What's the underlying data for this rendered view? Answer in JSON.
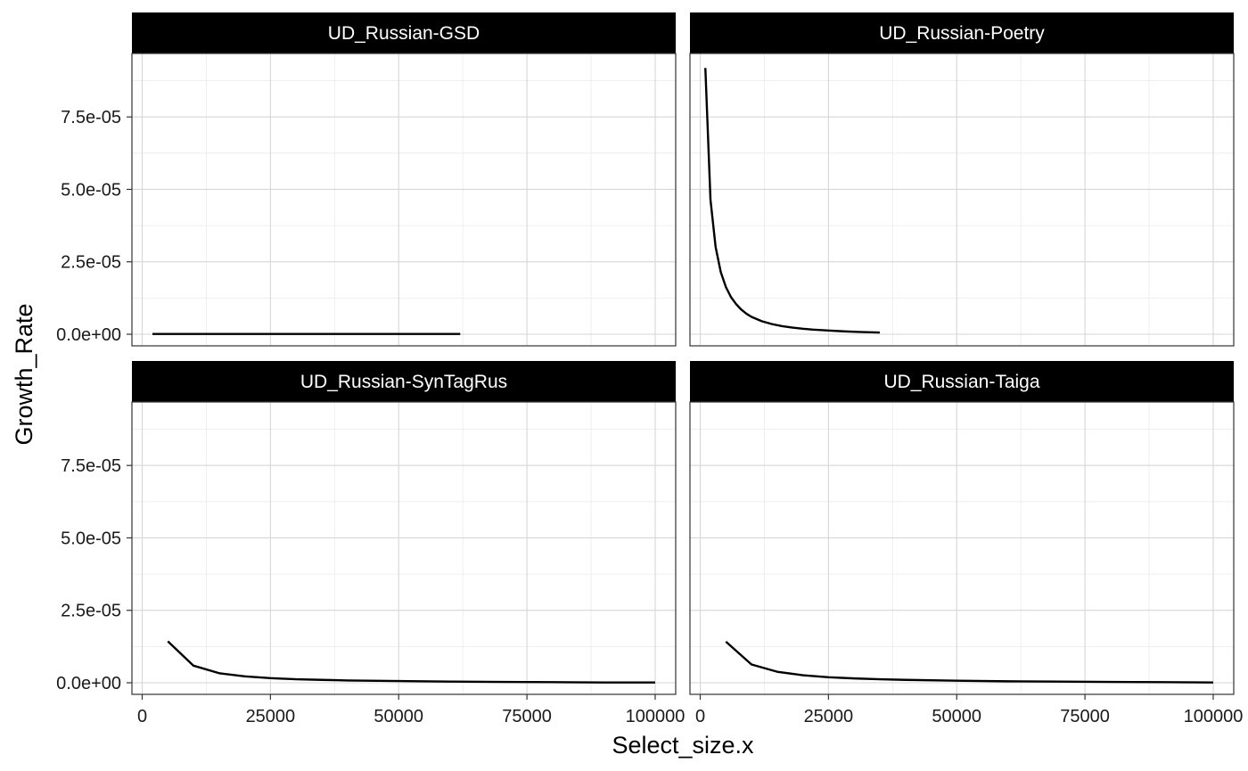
{
  "chart_data": {
    "type": "line",
    "xlabel": "Select_size.x",
    "ylabel": "Growth_Rate",
    "xlim": [
      -2000,
      104000
    ],
    "ylim": [
      -4e-06,
      9.69e-05
    ],
    "x_ticks": [
      0,
      25000,
      50000,
      75000,
      100000
    ],
    "x_tick_labels": [
      "0",
      "25000",
      "50000",
      "75000",
      "100000"
    ],
    "y_ticks": [
      0,
      2.5e-05,
      5e-05,
      7.5e-05
    ],
    "y_tick_labels": [
      "0.0e+00",
      "2.5e-05",
      "5.0e-05",
      "7.5e-05"
    ],
    "grid": true,
    "line_color": "#000000",
    "facets": [
      {
        "title": "UD_Russian-GSD",
        "x": [
          2000,
          10000,
          20000,
          30000,
          40000,
          50000,
          62000
        ],
        "y": [
          1e-07,
          1e-07,
          1e-07,
          1e-07,
          1e-07,
          1e-07,
          1e-07
        ]
      },
      {
        "title": "UD_Russian-Poetry",
        "x": [
          1000,
          2000,
          3000,
          4000,
          5000,
          6000,
          7000,
          8000,
          9000,
          10000,
          12000,
          14000,
          16000,
          18000,
          20000,
          22000,
          25000,
          28000,
          31000,
          35000
        ],
        "y": [
          9.19e-05,
          4.64e-05,
          3.01e-05,
          2.15e-05,
          1.63e-05,
          1.28e-05,
          1.04e-05,
          8.5e-06,
          7.1e-06,
          6e-06,
          4.5e-06,
          3.5e-06,
          2.8e-06,
          2.3e-06,
          1.9e-06,
          1.6e-06,
          1.3e-06,
          1e-06,
          8e-07,
          6e-07
        ]
      },
      {
        "title": "UD_Russian-SynTagRus",
        "x": [
          5000,
          10000,
          15000,
          20000,
          25000,
          30000,
          35000,
          40000,
          50000,
          60000,
          70000,
          80000,
          90000,
          100000
        ],
        "y": [
          1.43e-05,
          5.9e-06,
          3.3e-06,
          2.2e-06,
          1.6e-06,
          1.2e-06,
          1e-06,
          8e-07,
          6e-07,
          4e-07,
          3e-07,
          2e-07,
          1e-07,
          1e-07
        ]
      },
      {
        "title": "UD_Russian-Taiga",
        "x": [
          5000,
          10000,
          15000,
          20000,
          25000,
          30000,
          35000,
          40000,
          50000,
          60000,
          70000,
          80000,
          90000,
          100000
        ],
        "y": [
          1.42e-05,
          6.3e-06,
          3.8e-06,
          2.6e-06,
          1.9e-06,
          1.5e-06,
          1.2e-06,
          1e-06,
          7e-07,
          5e-07,
          4e-07,
          3e-07,
          2e-07,
          1e-07
        ]
      }
    ]
  }
}
